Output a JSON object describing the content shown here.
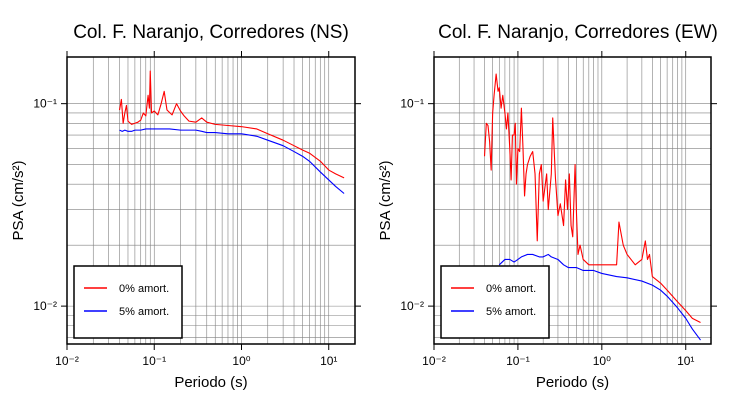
{
  "chart_data": [
    {
      "type": "line",
      "title": "Col. F. Naranjo, Corredores (NS)",
      "xlabel": "Periodo (s)",
      "ylabel": "PSA (cm/s²)",
      "xscale": "log",
      "yscale": "log",
      "xlim": [
        0.01,
        20
      ],
      "ylim": [
        0.0065,
        0.17
      ],
      "grid": true,
      "legend_position": "bottom-left",
      "x_ticks": [
        "10⁻²",
        "10⁻¹",
        "10⁰",
        "10¹"
      ],
      "y_ticks": [
        "10⁻²",
        "10⁻¹"
      ],
      "series": [
        {
          "name": "0% amort.",
          "color": "#ff0000",
          "points": [
            [
              0.04,
              0.093
            ],
            [
              0.042,
              0.105
            ],
            [
              0.044,
              0.08
            ],
            [
              0.046,
              0.09
            ],
            [
              0.048,
              0.098
            ],
            [
              0.05,
              0.082
            ],
            [
              0.055,
              0.079
            ],
            [
              0.06,
              0.08
            ],
            [
              0.065,
              0.081
            ],
            [
              0.07,
              0.083
            ],
            [
              0.075,
              0.09
            ],
            [
              0.08,
              0.087
            ],
            [
              0.085,
              0.11
            ],
            [
              0.088,
              0.095
            ],
            [
              0.09,
              0.145
            ],
            [
              0.093,
              0.09
            ],
            [
              0.1,
              0.092
            ],
            [
              0.11,
              0.088
            ],
            [
              0.12,
              0.1
            ],
            [
              0.13,
              0.115
            ],
            [
              0.14,
              0.093
            ],
            [
              0.16,
              0.088
            ],
            [
              0.18,
              0.1
            ],
            [
              0.2,
              0.092
            ],
            [
              0.22,
              0.087
            ],
            [
              0.25,
              0.082
            ],
            [
              0.3,
              0.081
            ],
            [
              0.35,
              0.085
            ],
            [
              0.4,
              0.081
            ],
            [
              0.5,
              0.079
            ],
            [
              0.7,
              0.078
            ],
            [
              1,
              0.077
            ],
            [
              1.5,
              0.075
            ],
            [
              2,
              0.071
            ],
            [
              3,
              0.066
            ],
            [
              4,
              0.062
            ],
            [
              5,
              0.059
            ],
            [
              6,
              0.057
            ],
            [
              8,
              0.052
            ],
            [
              10,
              0.047
            ],
            [
              12,
              0.045
            ],
            [
              15,
              0.043
            ]
          ]
        },
        {
          "name": "5% amort.",
          "color": "#0000ff",
          "points": [
            [
              0.04,
              0.074
            ],
            [
              0.043,
              0.073
            ],
            [
              0.046,
              0.074
            ],
            [
              0.05,
              0.073
            ],
            [
              0.055,
              0.073
            ],
            [
              0.06,
              0.074
            ],
            [
              0.07,
              0.074
            ],
            [
              0.08,
              0.075
            ],
            [
              0.1,
              0.075
            ],
            [
              0.12,
              0.075
            ],
            [
              0.15,
              0.075
            ],
            [
              0.2,
              0.074
            ],
            [
              0.25,
              0.074
            ],
            [
              0.3,
              0.074
            ],
            [
              0.35,
              0.073
            ],
            [
              0.4,
              0.072
            ],
            [
              0.5,
              0.072
            ],
            [
              0.7,
              0.071
            ],
            [
              1,
              0.071
            ],
            [
              1.5,
              0.069
            ],
            [
              2,
              0.066
            ],
            [
              3,
              0.062
            ],
            [
              4,
              0.058
            ],
            [
              5,
              0.055
            ],
            [
              6,
              0.052
            ],
            [
              8,
              0.046
            ],
            [
              10,
              0.042
            ],
            [
              12,
              0.039
            ],
            [
              15,
              0.036
            ]
          ]
        }
      ]
    },
    {
      "type": "line",
      "title": "Col. F. Naranjo, Corredores (EW)",
      "xlabel": "Periodo (s)",
      "ylabel": "PSA (cm/s²)",
      "xscale": "log",
      "yscale": "log",
      "xlim": [
        0.01,
        20
      ],
      "ylim": [
        0.0065,
        0.17
      ],
      "grid": true,
      "legend_position": "bottom-left",
      "x_ticks": [
        "10⁻²",
        "10⁻¹",
        "10⁰",
        "10¹"
      ],
      "y_ticks": [
        "10⁻²",
        "10⁻¹"
      ],
      "series": [
        {
          "name": "0% amort.",
          "color": "#ff0000",
          "points": [
            [
              0.04,
              0.055
            ],
            [
              0.042,
              0.08
            ],
            [
              0.044,
              0.078
            ],
            [
              0.046,
              0.065
            ],
            [
              0.048,
              0.047
            ],
            [
              0.05,
              0.09
            ],
            [
              0.052,
              0.11
            ],
            [
              0.055,
              0.14
            ],
            [
              0.058,
              0.115
            ],
            [
              0.06,
              0.12
            ],
            [
              0.063,
              0.095
            ],
            [
              0.066,
              0.11
            ],
            [
              0.07,
              0.09
            ],
            [
              0.073,
              0.075
            ],
            [
              0.076,
              0.09
            ],
            [
              0.08,
              0.06
            ],
            [
              0.083,
              0.042
            ],
            [
              0.086,
              0.07
            ],
            [
              0.09,
              0.07
            ],
            [
              0.093,
              0.08
            ],
            [
              0.096,
              0.04
            ],
            [
              0.1,
              0.06
            ],
            [
              0.105,
              0.058
            ],
            [
              0.11,
              0.095
            ],
            [
              0.115,
              0.06
            ],
            [
              0.12,
              0.035
            ],
            [
              0.125,
              0.045
            ],
            [
              0.13,
              0.05
            ],
            [
              0.14,
              0.055
            ],
            [
              0.15,
              0.058
            ],
            [
              0.16,
              0.045
            ],
            [
              0.17,
              0.021
            ],
            [
              0.18,
              0.045
            ],
            [
              0.19,
              0.05
            ],
            [
              0.2,
              0.033
            ],
            [
              0.22,
              0.045
            ],
            [
              0.23,
              0.03
            ],
            [
              0.25,
              0.045
            ],
            [
              0.26,
              0.085
            ],
            [
              0.28,
              0.043
            ],
            [
              0.3,
              0.028
            ],
            [
              0.32,
              0.032
            ],
            [
              0.35,
              0.025
            ],
            [
              0.37,
              0.042
            ],
            [
              0.39,
              0.03
            ],
            [
              0.41,
              0.045
            ],
            [
              0.43,
              0.025
            ],
            [
              0.45,
              0.022
            ],
            [
              0.48,
              0.05
            ],
            [
              0.5,
              0.028
            ],
            [
              0.52,
              0.018
            ],
            [
              0.55,
              0.02
            ],
            [
              0.6,
              0.017
            ],
            [
              0.7,
              0.016
            ],
            [
              0.8,
              0.016
            ],
            [
              0.9,
              0.016
            ],
            [
              1,
              0.016
            ],
            [
              1.2,
              0.016
            ],
            [
              1.5,
              0.016
            ],
            [
              1.6,
              0.026
            ],
            [
              1.8,
              0.02
            ],
            [
              2,
              0.018
            ],
            [
              2.5,
              0.016
            ],
            [
              3,
              0.017
            ],
            [
              3.3,
              0.021
            ],
            [
              3.5,
              0.017
            ],
            [
              3.7,
              0.018
            ],
            [
              4,
              0.014
            ],
            [
              5,
              0.013
            ],
            [
              6,
              0.012
            ],
            [
              8,
              0.0105
            ],
            [
              10,
              0.0095
            ],
            [
              12,
              0.0087
            ],
            [
              15,
              0.0083
            ]
          ]
        },
        {
          "name": "5% amort.",
          "color": "#0000ff",
          "points": [
            [
              0.06,
              0.016
            ],
            [
              0.07,
              0.017
            ],
            [
              0.08,
              0.017
            ],
            [
              0.09,
              0.0165
            ],
            [
              0.1,
              0.017
            ],
            [
              0.11,
              0.0175
            ],
            [
              0.13,
              0.018
            ],
            [
              0.15,
              0.018
            ],
            [
              0.18,
              0.0175
            ],
            [
              0.2,
              0.0175
            ],
            [
              0.23,
              0.018
            ],
            [
              0.25,
              0.0175
            ],
            [
              0.3,
              0.017
            ],
            [
              0.35,
              0.016
            ],
            [
              0.4,
              0.0155
            ],
            [
              0.5,
              0.0155
            ],
            [
              0.6,
              0.015
            ],
            [
              0.7,
              0.015
            ],
            [
              0.8,
              0.015
            ],
            [
              1,
              0.0145
            ],
            [
              1.5,
              0.014
            ],
            [
              2,
              0.0138
            ],
            [
              3,
              0.0133
            ],
            [
              4,
              0.0127
            ],
            [
              5,
              0.012
            ],
            [
              6,
              0.0112
            ],
            [
              8,
              0.0098
            ],
            [
              10,
              0.0087
            ],
            [
              12,
              0.0077
            ],
            [
              15,
              0.0068
            ]
          ]
        }
      ]
    }
  ]
}
